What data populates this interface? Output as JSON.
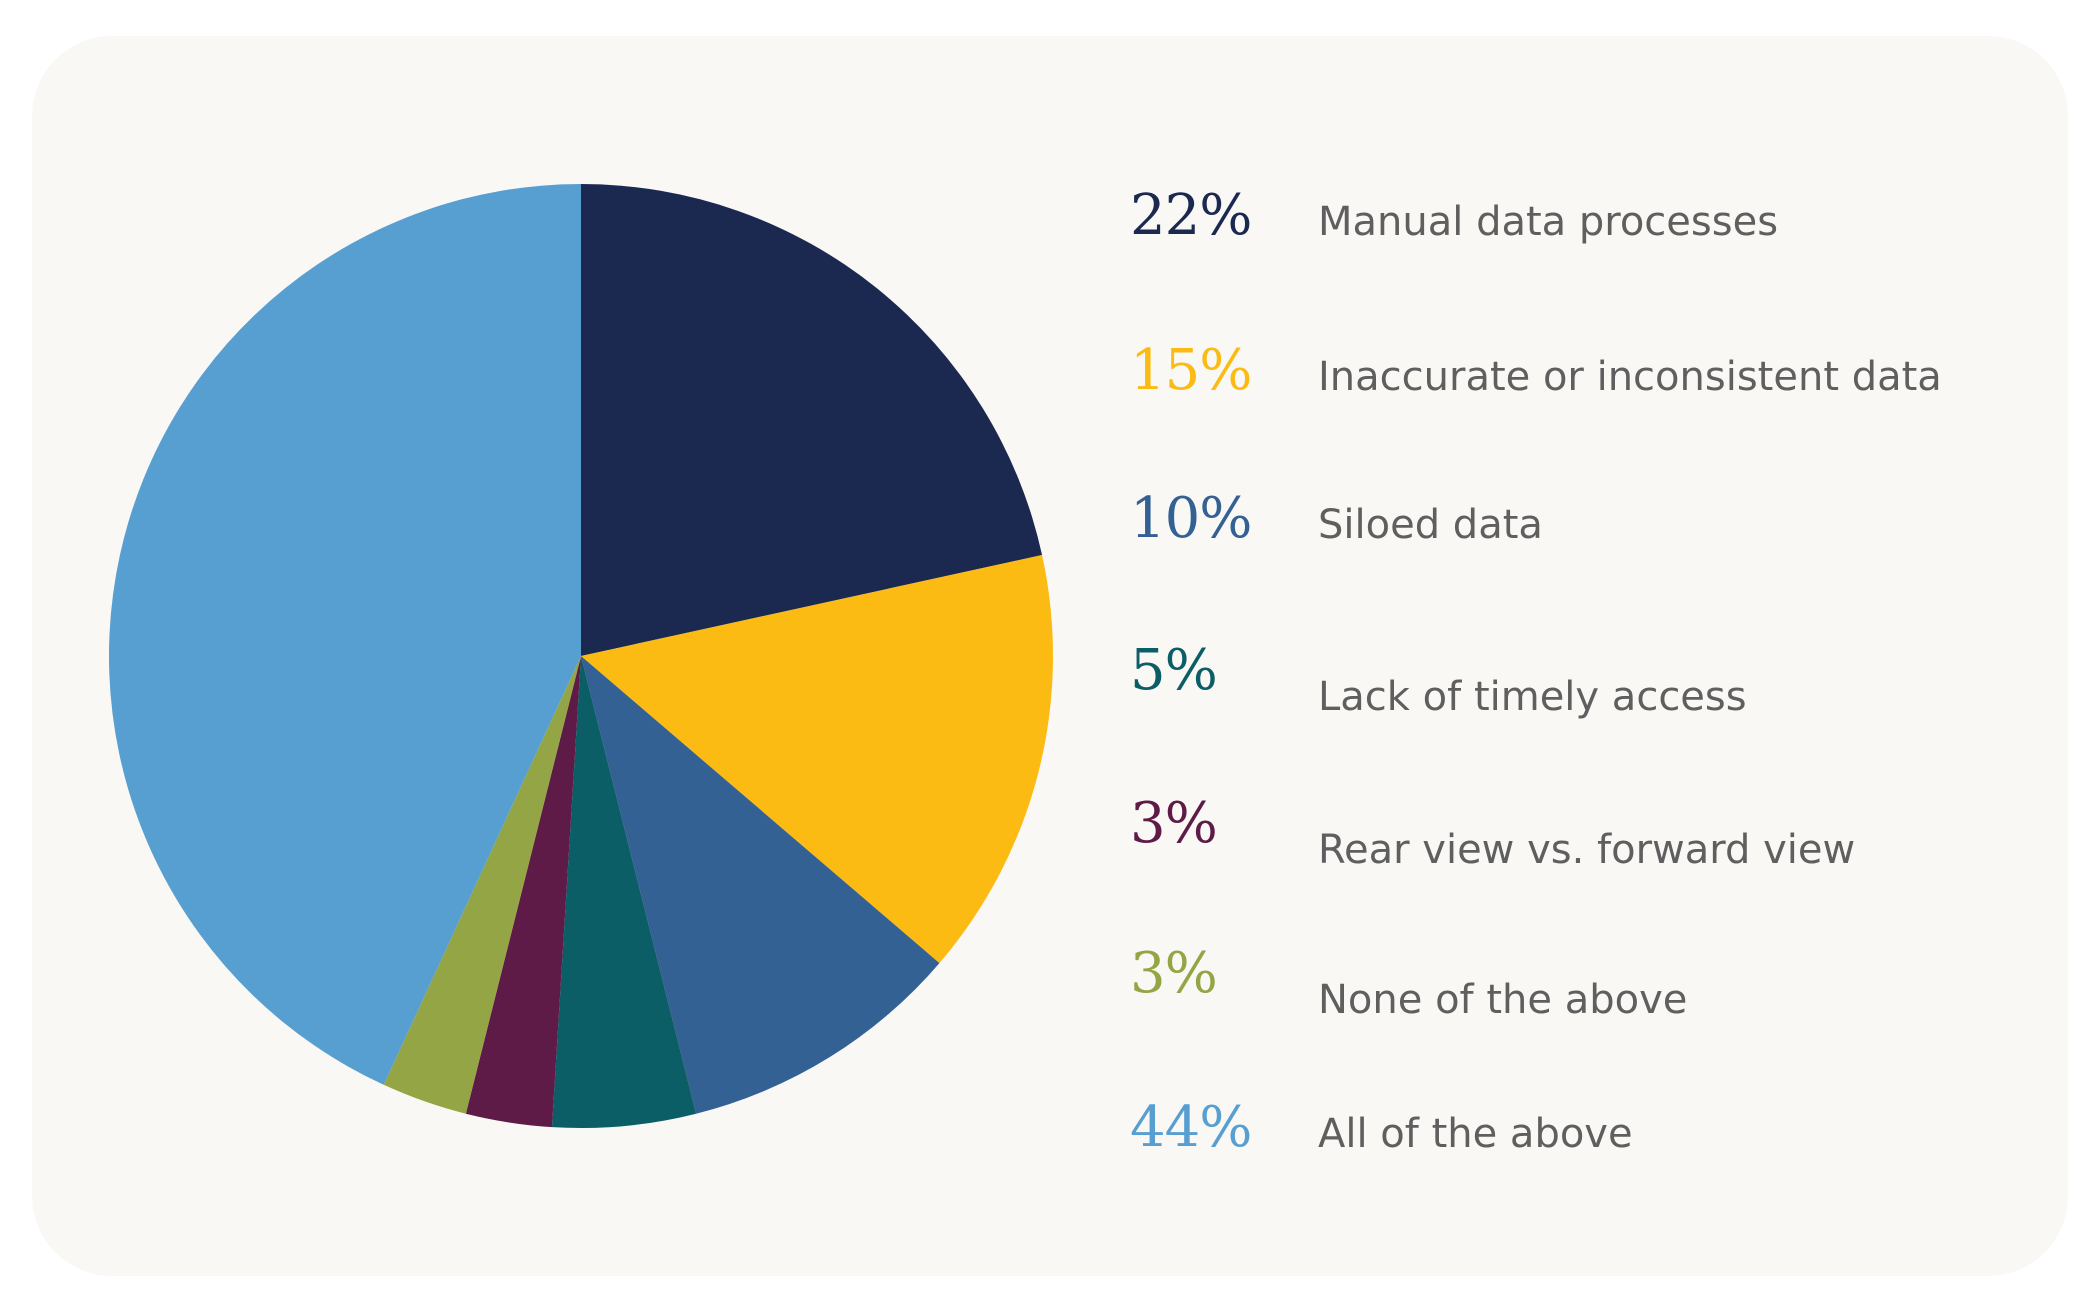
{
  "chart_data": {
    "type": "pie",
    "slices": [
      {
        "label": "Manual data processes",
        "value": 22,
        "display": "22%",
        "color": "#1b2951"
      },
      {
        "label": "Inaccurate or inconsistent data",
        "value": 15,
        "display": "15%",
        "color": "#fcbb12"
      },
      {
        "label": "Siloed data",
        "value": 10,
        "display": "10%",
        "color": "#346194"
      },
      {
        "label": "Lack of timely access",
        "value": 5,
        "display": "5%",
        "color": "#0c5e66"
      },
      {
        "label": "Rear view vs. forward view",
        "value": 3,
        "display": "3%",
        "color": "#5e1b47"
      },
      {
        "label": "None of the above",
        "value": 3,
        "display": "3%",
        "color": "#94a545"
      },
      {
        "label": "All of the above",
        "value": 44,
        "display": "44%",
        "color": "#589fd1"
      }
    ],
    "legend_position": "right",
    "start_angle": "top",
    "direction": "clockwise"
  }
}
